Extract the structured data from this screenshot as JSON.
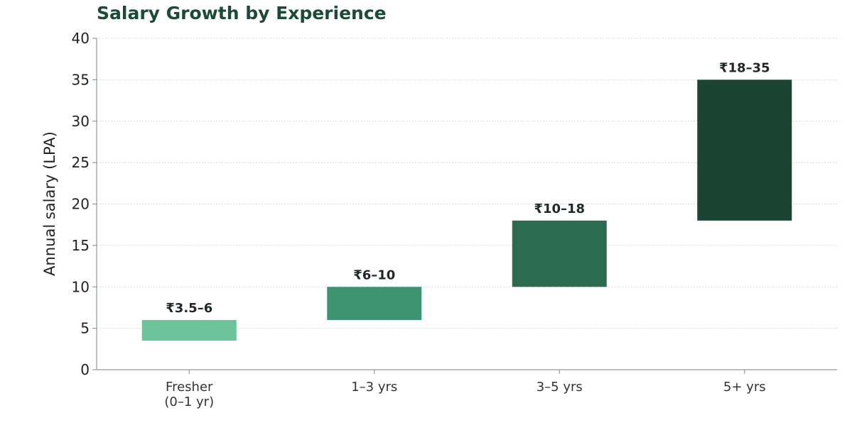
{
  "chart_data": {
    "type": "bar",
    "title": "Salary Growth by Experience",
    "xlabel": "",
    "ylabel": "Annual salary (LPA)",
    "ylim": [
      0,
      40
    ],
    "yticks": [
      0,
      5,
      10,
      15,
      20,
      25,
      30,
      35,
      40
    ],
    "grid": true,
    "categories": [
      [
        "Fresher",
        "(0–1 yr)"
      ],
      [
        "1–3 yrs"
      ],
      [
        "3–5 yrs"
      ],
      [
        "5+ yrs"
      ]
    ],
    "ranges": [
      {
        "low": 3.5,
        "high": 6,
        "label": "₹3.5–6",
        "color": "#6dc49a"
      },
      {
        "low": 6,
        "high": 10,
        "label": "₹6–10",
        "color": "#3e9470"
      },
      {
        "low": 10,
        "high": 18,
        "label": "₹10–18",
        "color": "#2c6b4f"
      },
      {
        "low": 18,
        "high": 35,
        "label": "₹18–35",
        "color": "#1b4532"
      }
    ]
  }
}
